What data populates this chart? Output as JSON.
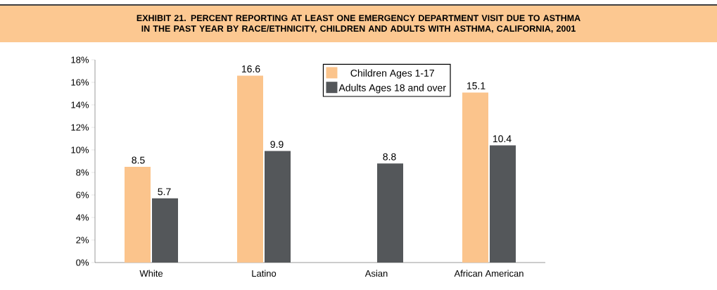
{
  "chart_data": {
    "type": "bar",
    "title": "EXHIBIT 21. PERCENT REPORTING AT LEAST ONE EMERGENCY DEPARTMENT VISIT DUE TO ASTHMA IN THE PAST YEAR BY RACE/ETHNICITY, CHILDREN AND ADULTS WITH ASTHMA, CALIFORNIA, 2001",
    "categories": [
      "White",
      "Latino",
      "Asian",
      "African American"
    ],
    "series": [
      {
        "name": "Children Ages 1-17",
        "color": "#fbc48c",
        "values": [
          8.5,
          16.6,
          null,
          15.1
        ]
      },
      {
        "name": "Adults Ages 18 and over",
        "color": "#54575a",
        "values": [
          5.7,
          9.9,
          8.8,
          10.4
        ]
      }
    ],
    "ylim": [
      0,
      18
    ],
    "yticks": [
      {
        "value": 0,
        "label": "0%"
      },
      {
        "value": 2,
        "label": "2%"
      },
      {
        "value": 4,
        "label": "4%"
      },
      {
        "value": 6,
        "label": "6%"
      },
      {
        "value": 8,
        "label": "8%"
      },
      {
        "value": 10,
        "label": "10%"
      },
      {
        "value": 12,
        "label": "12%"
      },
      {
        "value": 14,
        "label": "14%"
      },
      {
        "value": 16,
        "label": "16%"
      },
      {
        "value": 18,
        "label": "18%"
      }
    ],
    "data_labels": true,
    "legend": "top right",
    "grid": false
  }
}
